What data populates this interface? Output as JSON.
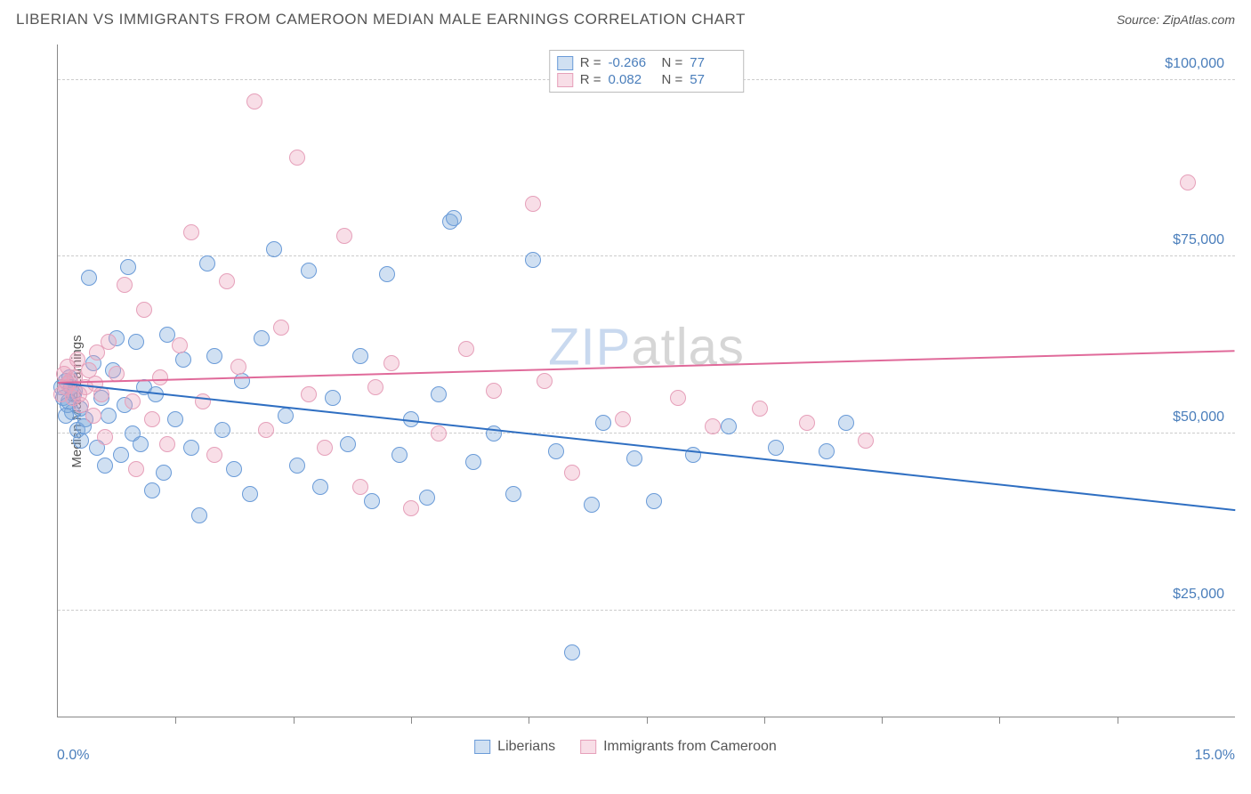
{
  "title": "LIBERIAN VS IMMIGRANTS FROM CAMEROON MEDIAN MALE EARNINGS CORRELATION CHART",
  "source_prefix": "Source: ",
  "source_name": "ZipAtlas.com",
  "ylabel": "Median Male Earnings",
  "watermark_a": "ZIP",
  "watermark_b": "atlas",
  "chart": {
    "type": "scatter",
    "xlim": [
      0,
      15
    ],
    "ylim": [
      10000,
      105000
    ],
    "x_label_min": "0.0%",
    "x_label_max": "15.0%",
    "y_ticks": [
      25000,
      50000,
      75000,
      100000
    ],
    "y_tick_labels": [
      "$25,000",
      "$50,000",
      "$75,000",
      "$100,000"
    ],
    "x_tick_positions": [
      1.5,
      3.0,
      4.5,
      6.0,
      7.5,
      9.0,
      10.5,
      12.0,
      13.5
    ],
    "background_color": "#ffffff",
    "grid_color": "#cccccc",
    "axis_color": "#888888",
    "tick_label_color": "#4a7ebb",
    "marker_radius": 9,
    "marker_border_width": 1.5,
    "series": [
      {
        "key": "liberians",
        "label": "Liberians",
        "fill": "rgba(120,165,218,0.35)",
        "stroke": "#6a9bd8",
        "line_color": "#2f6fc2",
        "R_label": "R =",
        "R": "-0.266",
        "N_label": "N =",
        "N": "77",
        "regression": {
          "x1": 0,
          "y1": 57000,
          "x2": 15,
          "y2": 39000
        },
        "points": [
          [
            0.05,
            56500
          ],
          [
            0.07,
            55000
          ],
          [
            0.1,
            57500
          ],
          [
            0.12,
            54000
          ],
          [
            0.15,
            58000
          ],
          [
            0.18,
            53000
          ],
          [
            0.2,
            55500
          ],
          [
            0.22,
            56000
          ],
          [
            0.25,
            50500
          ],
          [
            0.3,
            49000
          ],
          [
            0.35,
            52000
          ],
          [
            0.4,
            72000
          ],
          [
            0.45,
            60000
          ],
          [
            0.5,
            48000
          ],
          [
            0.55,
            55000
          ],
          [
            0.6,
            45500
          ],
          [
            0.65,
            52500
          ],
          [
            0.7,
            59000
          ],
          [
            0.75,
            63500
          ],
          [
            0.8,
            47000
          ],
          [
            0.85,
            54000
          ],
          [
            0.9,
            73500
          ],
          [
            0.95,
            50000
          ],
          [
            1.0,
            63000
          ],
          [
            1.05,
            48500
          ],
          [
            1.1,
            56500
          ],
          [
            1.2,
            42000
          ],
          [
            1.25,
            55500
          ],
          [
            1.35,
            44500
          ],
          [
            1.4,
            64000
          ],
          [
            1.5,
            52000
          ],
          [
            1.6,
            60500
          ],
          [
            1.7,
            48000
          ],
          [
            1.8,
            38500
          ],
          [
            1.9,
            74000
          ],
          [
            2.0,
            61000
          ],
          [
            2.1,
            50500
          ],
          [
            2.25,
            45000
          ],
          [
            2.35,
            57500
          ],
          [
            2.45,
            41500
          ],
          [
            2.6,
            63500
          ],
          [
            2.75,
            76000
          ],
          [
            2.9,
            52500
          ],
          [
            3.05,
            45500
          ],
          [
            3.2,
            73000
          ],
          [
            3.35,
            42500
          ],
          [
            3.5,
            55000
          ],
          [
            3.7,
            48500
          ],
          [
            3.85,
            61000
          ],
          [
            4.0,
            40500
          ],
          [
            4.2,
            72500
          ],
          [
            4.35,
            47000
          ],
          [
            4.5,
            52000
          ],
          [
            4.7,
            41000
          ],
          [
            4.85,
            55500
          ],
          [
            5.0,
            80000
          ],
          [
            5.05,
            80500
          ],
          [
            5.3,
            46000
          ],
          [
            5.55,
            50000
          ],
          [
            5.8,
            41500
          ],
          [
            6.05,
            74500
          ],
          [
            6.35,
            47500
          ],
          [
            6.55,
            19000
          ],
          [
            6.8,
            40000
          ],
          [
            6.95,
            51500
          ],
          [
            7.35,
            46500
          ],
          [
            7.6,
            40500
          ],
          [
            8.1,
            47000
          ],
          [
            8.55,
            51000
          ],
          [
            9.15,
            48000
          ],
          [
            9.8,
            47500
          ],
          [
            10.05,
            51500
          ],
          [
            0.1,
            52500
          ],
          [
            0.14,
            54500
          ],
          [
            0.17,
            56500
          ],
          [
            0.28,
            53500
          ],
          [
            0.33,
            51000
          ]
        ]
      },
      {
        "key": "cameroon",
        "label": "Immigrants from Cameroon",
        "fill": "rgba(235,160,185,0.35)",
        "stroke": "#e6a0ba",
        "line_color": "#e06a9a",
        "R_label": "R =",
        "R": "0.082",
        "N_label": "N =",
        "N": "57",
        "regression": {
          "x1": 0,
          "y1": 57000,
          "x2": 15,
          "y2": 61500
        },
        "points": [
          [
            0.05,
            55500
          ],
          [
            0.08,
            58500
          ],
          [
            0.1,
            56500
          ],
          [
            0.13,
            59500
          ],
          [
            0.16,
            57500
          ],
          [
            0.19,
            55000
          ],
          [
            0.22,
            58000
          ],
          [
            0.25,
            60500
          ],
          [
            0.3,
            54000
          ],
          [
            0.35,
            56500
          ],
          [
            0.4,
            59000
          ],
          [
            0.45,
            52500
          ],
          [
            0.5,
            61500
          ],
          [
            0.55,
            55500
          ],
          [
            0.6,
            49500
          ],
          [
            0.65,
            63000
          ],
          [
            0.75,
            58500
          ],
          [
            0.85,
            71000
          ],
          [
            0.95,
            54500
          ],
          [
            1.0,
            45000
          ],
          [
            1.1,
            67500
          ],
          [
            1.2,
            52000
          ],
          [
            1.3,
            58000
          ],
          [
            1.4,
            48500
          ],
          [
            1.55,
            62500
          ],
          [
            1.7,
            78500
          ],
          [
            1.85,
            54500
          ],
          [
            2.0,
            47000
          ],
          [
            2.15,
            71500
          ],
          [
            2.3,
            59500
          ],
          [
            2.5,
            97000
          ],
          [
            2.65,
            50500
          ],
          [
            2.85,
            65000
          ],
          [
            3.05,
            89000
          ],
          [
            3.2,
            55500
          ],
          [
            3.4,
            48000
          ],
          [
            3.65,
            78000
          ],
          [
            3.85,
            42500
          ],
          [
            4.05,
            56500
          ],
          [
            4.25,
            60000
          ],
          [
            4.5,
            39500
          ],
          [
            4.85,
            50000
          ],
          [
            5.2,
            62000
          ],
          [
            5.55,
            56000
          ],
          [
            6.05,
            82500
          ],
          [
            6.2,
            57500
          ],
          [
            6.55,
            44500
          ],
          [
            7.2,
            52000
          ],
          [
            7.9,
            55000
          ],
          [
            8.35,
            51000
          ],
          [
            8.95,
            53500
          ],
          [
            9.55,
            51500
          ],
          [
            10.3,
            49000
          ],
          [
            14.4,
            85500
          ],
          [
            0.12,
            57000
          ],
          [
            0.27,
            55500
          ],
          [
            0.48,
            57000
          ]
        ]
      }
    ]
  }
}
